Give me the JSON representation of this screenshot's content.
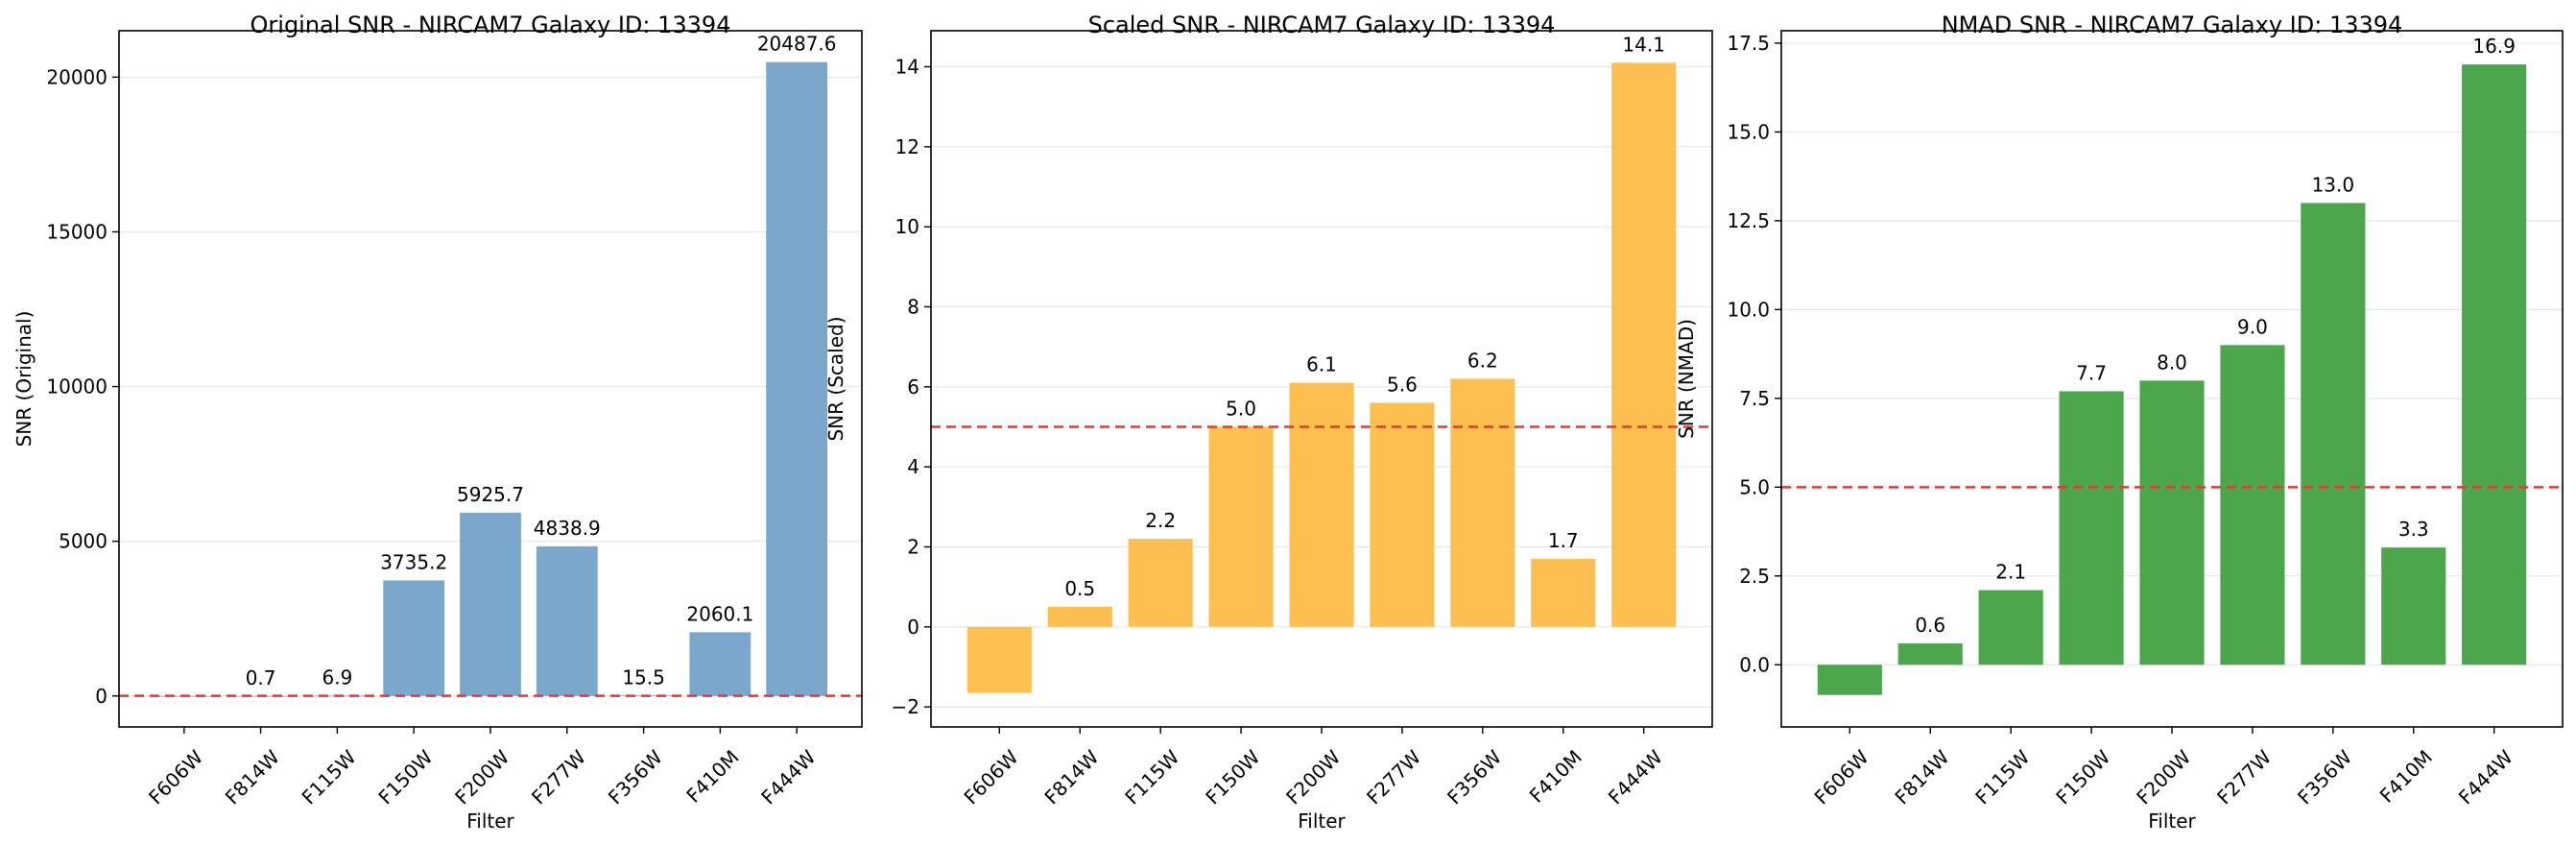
{
  "chart_data": [
    {
      "type": "bar",
      "title": "Original SNR - NIRCAM7 Galaxy ID: 13394",
      "xlabel": "Filter",
      "ylabel": "SNR (Original)",
      "categories": [
        "F606W",
        "F814W",
        "F115W",
        "F150W",
        "F200W",
        "F277W",
        "F356W",
        "F410M",
        "F444W"
      ],
      "values": [
        0,
        0.7,
        6.9,
        3735.2,
        5925.7,
        4838.9,
        15.5,
        2060.1,
        20487.6
      ],
      "labels": [
        null,
        "0.7",
        "6.9",
        "3735.2",
        "5925.7",
        "4838.9",
        "15.5",
        "2060.1",
        "20487.6"
      ],
      "ylim": [
        -1000,
        21500
      ],
      "yticks": [
        0,
        5000,
        10000,
        15000,
        20000
      ],
      "ytick_labels": [
        "0",
        "5000",
        "10000",
        "15000",
        "20000"
      ],
      "threshold": 5,
      "bar_color": "#7ba7cc",
      "threshold_color": "#e53935",
      "grid": "horizontal"
    },
    {
      "type": "bar",
      "title": "Scaled SNR - NIRCAM7 Galaxy ID: 13394",
      "xlabel": "Filter",
      "ylabel": "SNR (Scaled)",
      "categories": [
        "F606W",
        "F814W",
        "F115W",
        "F150W",
        "F200W",
        "F277W",
        "F356W",
        "F410M",
        "F444W"
      ],
      "values": [
        -1.65,
        0.5,
        2.2,
        5.0,
        6.1,
        5.6,
        6.2,
        1.7,
        14.1
      ],
      "labels": [
        null,
        "0.5",
        "2.2",
        "5.0",
        "6.1",
        "5.6",
        "6.2",
        "1.7",
        "14.1"
      ],
      "ylim": [
        -2.5,
        14.9
      ],
      "yticks": [
        -2,
        0,
        2,
        4,
        6,
        8,
        10,
        12,
        14
      ],
      "ytick_labels": [
        "−2",
        "0",
        "2",
        "4",
        "6",
        "8",
        "10",
        "12",
        "14"
      ],
      "threshold": 5,
      "bar_color": "#ffbf50",
      "threshold_color": "#e53935",
      "grid": "horizontal"
    },
    {
      "type": "bar",
      "title": "NMAD SNR - NIRCAM7 Galaxy ID: 13394",
      "xlabel": "Filter",
      "ylabel": "SNR (NMAD)",
      "categories": [
        "F606W",
        "F814W",
        "F115W",
        "F150W",
        "F200W",
        "F277W",
        "F356W",
        "F410M",
        "F444W"
      ],
      "values": [
        -0.85,
        0.6,
        2.1,
        7.7,
        8.0,
        9.0,
        13.0,
        3.3,
        16.9
      ],
      "labels": [
        null,
        "0.6",
        "2.1",
        "7.7",
        "8.0",
        "9.0",
        "13.0",
        "3.3",
        "16.9"
      ],
      "ylim": [
        -1.75,
        17.85
      ],
      "yticks": [
        0.0,
        2.5,
        5.0,
        7.5,
        10.0,
        12.5,
        15.0,
        17.5
      ],
      "ytick_labels": [
        "0.0",
        "2.5",
        "5.0",
        "7.5",
        "10.0",
        "12.5",
        "15.0",
        "17.5"
      ],
      "threshold": 5,
      "bar_color": "#4ca64c",
      "threshold_color": "#e53935",
      "grid": "horizontal"
    }
  ]
}
